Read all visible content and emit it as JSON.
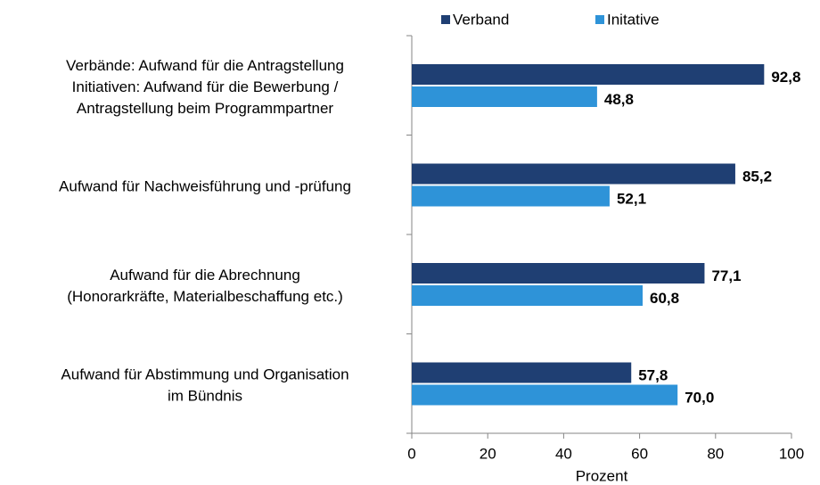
{
  "chart_data": {
    "type": "bar",
    "orientation": "horizontal",
    "categories": [
      [
        "Verbände: Aufwand für die Antragstellung",
        "Initiativen: Aufwand für die Bewerbung /",
        "Antragstellung beim Programmpartner"
      ],
      [
        "Aufwand für Nachweisführung und -prüfung"
      ],
      [
        "Aufwand für die Abrechnung",
        "(Honorarkräfte, Materialbeschaffung etc.)"
      ],
      [
        "Aufwand für Abstimmung und Organisation",
        "im Bündnis"
      ]
    ],
    "series": [
      {
        "name": "Verband",
        "color": "#1f3f73",
        "values": [
          92.8,
          85.2,
          77.1,
          57.8
        ],
        "value_labels": [
          "92,8",
          "85,2",
          "77,1",
          "57,8"
        ]
      },
      {
        "name": "Initative",
        "color": "#2e93d8",
        "values": [
          48.8,
          52.1,
          60.8,
          70.0
        ],
        "value_labels": [
          "48,8",
          "52,1",
          "60,8",
          "70,0"
        ]
      }
    ],
    "xlabel": "Prozent",
    "xlim": [
      0,
      100
    ],
    "xticks": [
      0,
      20,
      40,
      60,
      80,
      100
    ],
    "legend": "top"
  }
}
